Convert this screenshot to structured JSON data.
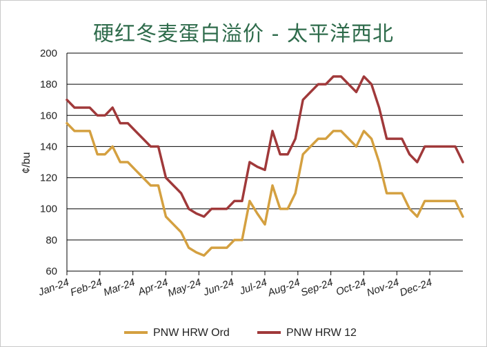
{
  "chart_data": {
    "type": "line",
    "title": "硬红冬麦蛋白溢价 - 太平洋西北",
    "ylabel": "¢/bu",
    "xlabel": "",
    "ylim": [
      60,
      200
    ],
    "yticks": [
      60,
      80,
      100,
      120,
      140,
      160,
      180,
      200
    ],
    "month_labels": [
      "Jan-24",
      "Feb-24",
      "Mar-24",
      "Apr-24",
      "May-24",
      "Jun-24",
      "Jul-24",
      "Aug-24",
      "Sep-24",
      "Oct-24",
      "Nov-24",
      "Dec-24"
    ],
    "grid": true,
    "legend_position": "bottom",
    "series": [
      {
        "name": "PNW HRW Ord",
        "color": "#d4a040",
        "values": [
          155,
          150,
          150,
          150,
          135,
          135,
          140,
          130,
          130,
          125,
          120,
          115,
          115,
          95,
          90,
          85,
          75,
          72,
          70,
          75,
          75,
          75,
          80,
          80,
          105,
          97,
          90,
          115,
          100,
          100,
          110,
          135,
          140,
          145,
          145,
          150,
          150,
          145,
          140,
          150,
          145,
          130,
          110,
          110,
          110,
          100,
          95,
          105,
          105,
          105,
          105,
          105,
          95
        ]
      },
      {
        "name": "PNW HRW 12",
        "color": "#a0393a",
        "values": [
          170,
          165,
          165,
          165,
          160,
          160,
          165,
          155,
          155,
          150,
          145,
          140,
          140,
          120,
          115,
          110,
          100,
          97,
          95,
          100,
          100,
          100,
          105,
          105,
          130,
          127,
          125,
          150,
          135,
          135,
          145,
          170,
          175,
          180,
          180,
          185,
          185,
          180,
          175,
          185,
          180,
          165,
          145,
          145,
          145,
          135,
          130,
          140,
          140,
          140,
          140,
          140,
          130
        ]
      }
    ]
  }
}
